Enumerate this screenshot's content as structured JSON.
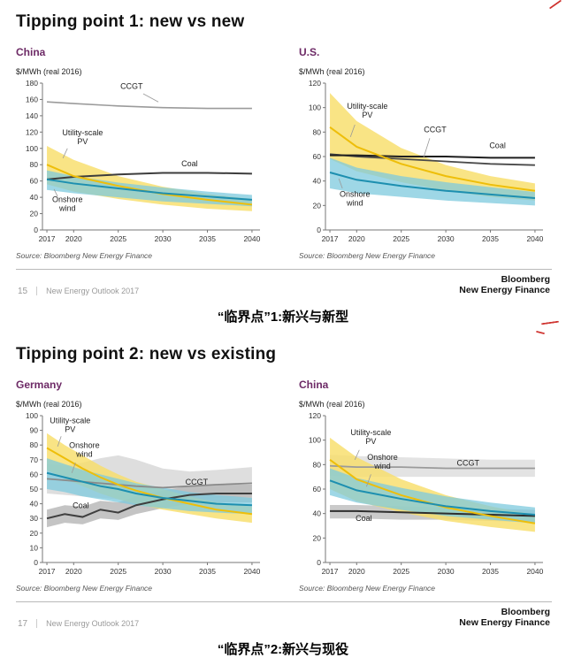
{
  "colors": {
    "chart_title": "#6d2a66",
    "artifact_red": "#cf3430",
    "axis": "#777777"
  },
  "slides": [
    {
      "title": "Tipping point 1: new vs new",
      "source_left": "Source: Bloomberg New Energy Finance",
      "source_right": "Source: Bloomberg New Energy Finance",
      "page_no": "15",
      "deck": "New Energy Outlook 2017",
      "brand_line1": "Bloomberg",
      "brand_line2": "New Energy Finance",
      "caption": "“临界点”1:新兴与新型"
    },
    {
      "title": "Tipping point 2: new vs existing",
      "source_left": "Source: Bloomberg New Energy Finance",
      "source_right": "Source: Bloomberg New Energy Finance",
      "page_no": "17",
      "deck": "New Energy Outlook 2017",
      "brand_line1": "Bloomberg",
      "brand_line2": "New Energy Finance",
      "caption": "“临界点”2:新兴与现役"
    }
  ],
  "chart_data": [
    {
      "type": "line",
      "title": "China",
      "ylabel": "$/MWh (real 2016)",
      "x": [
        2017,
        2020,
        2025,
        2030,
        2035,
        2040
      ],
      "xticks": [
        2017,
        2020,
        2025,
        2030,
        2035,
        2040
      ],
      "xlim": [
        2016.5,
        2040.9
      ],
      "ylim": [
        0,
        180
      ],
      "ytick_step": 20,
      "legend": "labels-on-chart",
      "grid": false,
      "series": [
        {
          "name": "CCGT",
          "color": "#9b9b9b",
          "width": 1.6,
          "values": [
            157,
            155,
            152,
            150,
            149,
            149
          ]
        },
        {
          "name": "Coal",
          "color": "#3d3d3d",
          "width": 2,
          "values": [
            62,
            65,
            68,
            70,
            70,
            69
          ]
        },
        {
          "name": "Utility-scale PV",
          "color": "#eebe09",
          "width": 2,
          "band_color": "#f7dd66",
          "band_opacity": 0.8,
          "values": [
            80,
            66,
            54,
            44,
            37,
            31
          ],
          "low": [
            56,
            47,
            38,
            31,
            26,
            23
          ],
          "high": [
            103,
            86,
            66,
            53,
            44,
            38
          ]
        },
        {
          "name": "Onshore wind",
          "color": "#1d8fb0",
          "width": 2,
          "band_color": "#7ec9de",
          "band_opacity": 0.75,
          "values": [
            62,
            57,
            51,
            45,
            41,
            37
          ],
          "low": [
            49,
            45,
            40,
            35,
            32,
            29
          ],
          "high": [
            73,
            66,
            58,
            52,
            47,
            43
          ]
        }
      ],
      "annotations": [
        {
          "text": "CCGT",
          "x": 2026.5,
          "y": 173,
          "leader": [
            2027.8,
            167,
            2029.5,
            157
          ]
        },
        {
          "text": "Utility-scale\nPV",
          "x": 2021,
          "y": 116,
          "leader": [
            2019.3,
            100,
            2018.8,
            88
          ]
        },
        {
          "text": "Coal",
          "x": 2033,
          "y": 78
        },
        {
          "text": "Onshore\nwind",
          "x": 2019.3,
          "y": 34,
          "leader": [
            2018.2,
            41,
            2017.8,
            50
          ]
        }
      ]
    },
    {
      "type": "line",
      "title": "U.S.",
      "ylabel": "$/MWh (real 2016)",
      "x": [
        2017,
        2020,
        2025,
        2030,
        2035,
        2040
      ],
      "xticks": [
        2017,
        2020,
        2025,
        2030,
        2035,
        2040
      ],
      "xlim": [
        2016.5,
        2040.9
      ],
      "ylim": [
        0,
        120
      ],
      "ytick_step": 20,
      "legend": "labels-on-chart",
      "grid": false,
      "series": [
        {
          "name": "CCGT",
          "color": "#4a4a4a",
          "width": 1.8,
          "values": [
            62,
            60,
            58,
            56,
            54,
            53
          ]
        },
        {
          "name": "Coal",
          "color": "#1f1f1f",
          "width": 2,
          "values": [
            61,
            61,
            60,
            60,
            59,
            59
          ]
        },
        {
          "name": "Utility-scale PV",
          "color": "#eebe09",
          "width": 2,
          "band_color": "#f7dd66",
          "band_opacity": 0.8,
          "values": [
            84,
            68,
            54,
            44,
            37,
            32
          ],
          "low": [
            58,
            48,
            39,
            32,
            27,
            24
          ],
          "high": [
            112,
            89,
            67,
            53,
            44,
            38
          ]
        },
        {
          "name": "Onshore wind",
          "color": "#1d8fb0",
          "width": 2,
          "band_color": "#7ec9de",
          "band_opacity": 0.75,
          "values": [
            47,
            41,
            36,
            32,
            29,
            26
          ],
          "low": [
            34,
            30,
            27,
            24,
            22,
            20
          ],
          "high": [
            59,
            51,
            44,
            39,
            35,
            31
          ]
        }
      ],
      "annotations": [
        {
          "text": "Utility-scale\nPV",
          "x": 2021.2,
          "y": 99,
          "leader": [
            2019.8,
            86,
            2019.3,
            76
          ]
        },
        {
          "text": "CCGT",
          "x": 2028.8,
          "y": 80,
          "leader": [
            2028.2,
            75,
            2027.5,
            59
          ]
        },
        {
          "text": "Coal",
          "x": 2035.8,
          "y": 67
        },
        {
          "text": "Onshore\nwind",
          "x": 2019.8,
          "y": 27,
          "leader": [
            2018.4,
            34,
            2018,
            42
          ]
        }
      ]
    },
    {
      "type": "line",
      "title": "Germany",
      "ylabel": "$/MWh (real 2016)",
      "x": [
        2017,
        2019,
        2021,
        2023,
        2025,
        2027,
        2030,
        2033,
        2036,
        2040
      ],
      "xticks": [
        2017,
        2020,
        2025,
        2030,
        2035,
        2040
      ],
      "xlim": [
        2016.5,
        2040.9
      ],
      "ylim": [
        0,
        100
      ],
      "ytick_step": 10,
      "legend": "labels-on-chart",
      "grid": false,
      "series": [
        {
          "name": "CCGT",
          "color": "#8a8a8a",
          "width": 1.8,
          "band_color": "#d8d8d8",
          "band_opacity": 0.85,
          "values": [
            57,
            56,
            55,
            54,
            53,
            52,
            51,
            52,
            53,
            54
          ],
          "low": [
            47,
            46,
            45,
            44,
            43,
            42,
            41,
            42,
            44,
            45
          ],
          "high": [
            67,
            66,
            68,
            71,
            73,
            70,
            64,
            62,
            63,
            65
          ]
        },
        {
          "name": "Coal",
          "color": "#3f3f3f",
          "width": 2,
          "band_color": "#b5b5b5",
          "band_opacity": 0.8,
          "values": [
            30,
            33,
            31,
            36,
            34,
            39,
            43,
            46,
            47,
            47
          ],
          "low": [
            24,
            27,
            26,
            30,
            29,
            33,
            37,
            40,
            41,
            41
          ],
          "high": [
            36,
            39,
            38,
            42,
            41,
            45,
            49,
            52,
            53,
            53
          ]
        },
        {
          "name": "Utility-scale PV",
          "color": "#eebe09",
          "width": 2,
          "band_color": "#f7dd66",
          "band_opacity": 0.8,
          "values": [
            78,
            71,
            64,
            58,
            53,
            49,
            44,
            40,
            36,
            33
          ],
          "low": [
            63,
            57,
            52,
            47,
            43,
            40,
            36,
            33,
            30,
            27
          ],
          "high": [
            88,
            80,
            73,
            66,
            60,
            55,
            50,
            45,
            41,
            38
          ]
        },
        {
          "name": "Onshore wind",
          "color": "#1d8fb0",
          "width": 2,
          "band_color": "#7ec9de",
          "band_opacity": 0.75,
          "values": [
            61,
            58,
            55,
            52,
            50,
            47,
            44,
            42,
            40,
            39
          ],
          "low": [
            50,
            48,
            45,
            43,
            41,
            39,
            37,
            35,
            34,
            33
          ],
          "high": [
            71,
            67,
            63,
            60,
            57,
            54,
            51,
            48,
            46,
            44
          ]
        }
      ],
      "annotations": [
        {
          "text": "Utility-scale\nPV",
          "x": 2019.6,
          "y": 95,
          "leader": [
            2018.6,
            86,
            2018.2,
            79
          ]
        },
        {
          "text": "Onshore\nwind",
          "x": 2021.2,
          "y": 78,
          "leader": [
            2020.2,
            68,
            2019.8,
            61
          ]
        },
        {
          "text": "CCGT",
          "x": 2033.8,
          "y": 53
        },
        {
          "text": "Coal",
          "x": 2020.8,
          "y": 37
        }
      ]
    },
    {
      "type": "line",
      "title": "China",
      "ylabel": "$/MWh (real 2016)",
      "x": [
        2017,
        2020,
        2025,
        2030,
        2035,
        2040
      ],
      "xticks": [
        2017,
        2020,
        2025,
        2030,
        2035,
        2040
      ],
      "xlim": [
        2016.5,
        2040.9
      ],
      "ylim": [
        0,
        120
      ],
      "ytick_step": 20,
      "legend": "labels-on-chart",
      "grid": false,
      "series": [
        {
          "name": "CCGT",
          "color": "#9a9a9a",
          "width": 1.8,
          "band_color": "#dedede",
          "band_opacity": 0.85,
          "values": [
            79,
            78,
            78,
            77,
            77,
            77
          ],
          "low": [
            71,
            70,
            70,
            70,
            70,
            70
          ],
          "high": [
            88,
            87,
            86,
            85,
            84,
            84
          ]
        },
        {
          "name": "Coal",
          "color": "#2e2e2e",
          "width": 2,
          "band_color": "#bdbdbd",
          "band_opacity": 0.8,
          "values": [
            42,
            42,
            41,
            40,
            39,
            38
          ],
          "low": [
            36,
            36,
            35,
            35,
            34,
            33
          ],
          "high": [
            47,
            47,
            46,
            45,
            44,
            43
          ]
        },
        {
          "name": "Utility-scale PV",
          "color": "#eebe09",
          "width": 2,
          "band_color": "#f7dd66",
          "band_opacity": 0.8,
          "values": [
            84,
            68,
            55,
            45,
            38,
            32
          ],
          "low": [
            60,
            50,
            41,
            34,
            29,
            25
          ],
          "high": [
            102,
            86,
            68,
            55,
            46,
            39
          ]
        },
        {
          "name": "Onshore wind",
          "color": "#1d8fb0",
          "width": 2,
          "band_color": "#7ec9de",
          "band_opacity": 0.75,
          "values": [
            67,
            59,
            52,
            46,
            42,
            39
          ],
          "low": [
            55,
            49,
            43,
            38,
            35,
            32
          ],
          "high": [
            77,
            69,
            61,
            54,
            49,
            45
          ]
        }
      ],
      "annotations": [
        {
          "text": "Utility-scale\nPV",
          "x": 2021.6,
          "y": 104,
          "leader": [
            2020.3,
            92,
            2019.8,
            84
          ]
        },
        {
          "text": "Onshore\nwind",
          "x": 2022.9,
          "y": 84,
          "leader": [
            2021.6,
            72,
            2021.1,
            62
          ]
        },
        {
          "text": "CCGT",
          "x": 2032.5,
          "y": 79
        },
        {
          "text": "Coal",
          "x": 2020.8,
          "y": 34
        }
      ]
    }
  ]
}
